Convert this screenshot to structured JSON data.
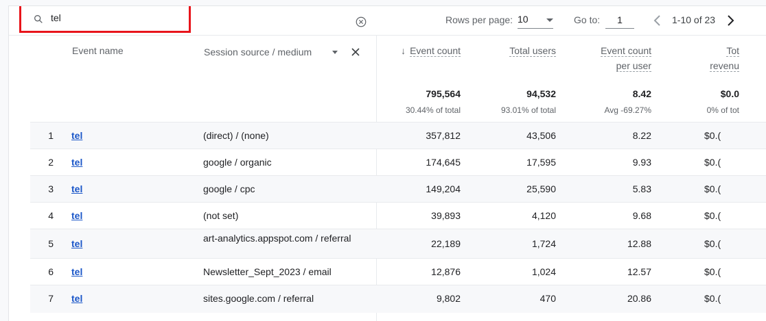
{
  "toolbar": {
    "search_value": "tel",
    "rows_per_page_label": "Rows per page:",
    "rows_per_page_value": "10",
    "goto_label": "Go to:",
    "goto_value": "1",
    "page_range": "1-10 of 23"
  },
  "header": {
    "event_name": "Event name",
    "session_source": "Session source / medium",
    "event_count": "Event count",
    "total_users": "Total users",
    "ecpu_line1": "Event count",
    "ecpu_line2": "per user",
    "rev_line1": "Tot",
    "rev_line2": "revenu"
  },
  "totals": {
    "event_count": "795,564",
    "event_count_sub": "30.44% of total",
    "total_users": "94,532",
    "total_users_sub": "93.01% of total",
    "ecpu": "8.42",
    "ecpu_sub": "Avg -69.27%",
    "revenue": "$0.0",
    "revenue_sub": "0% of tot"
  },
  "rows": [
    {
      "idx": "1",
      "event": "tel",
      "source": "(direct) / (none)",
      "count": "357,812",
      "users": "43,506",
      "ecpu": "8.22",
      "revenue": "$0.("
    },
    {
      "idx": "2",
      "event": "tel",
      "source": "google / organic",
      "count": "174,645",
      "users": "17,595",
      "ecpu": "9.93",
      "revenue": "$0.("
    },
    {
      "idx": "3",
      "event": "tel",
      "source": "google / cpc",
      "count": "149,204",
      "users": "25,590",
      "ecpu": "5.83",
      "revenue": "$0.("
    },
    {
      "idx": "4",
      "event": "tel",
      "source": "(not set)",
      "count": "39,893",
      "users": "4,120",
      "ecpu": "9.68",
      "revenue": "$0.("
    },
    {
      "idx": "5",
      "event": "tel",
      "source": "art-analytics.appspot.com / referral",
      "count": "22,189",
      "users": "1,724",
      "ecpu": "12.88",
      "revenue": "$0.("
    },
    {
      "idx": "6",
      "event": "tel",
      "source": "Newsletter_Sept_2023 / email",
      "count": "12,876",
      "users": "1,024",
      "ecpu": "12.57",
      "revenue": "$0.("
    },
    {
      "idx": "7",
      "event": "tel",
      "source": "sites.google.com / referral",
      "count": "9,802",
      "users": "470",
      "ecpu": "20.86",
      "revenue": "$0.("
    }
  ]
}
